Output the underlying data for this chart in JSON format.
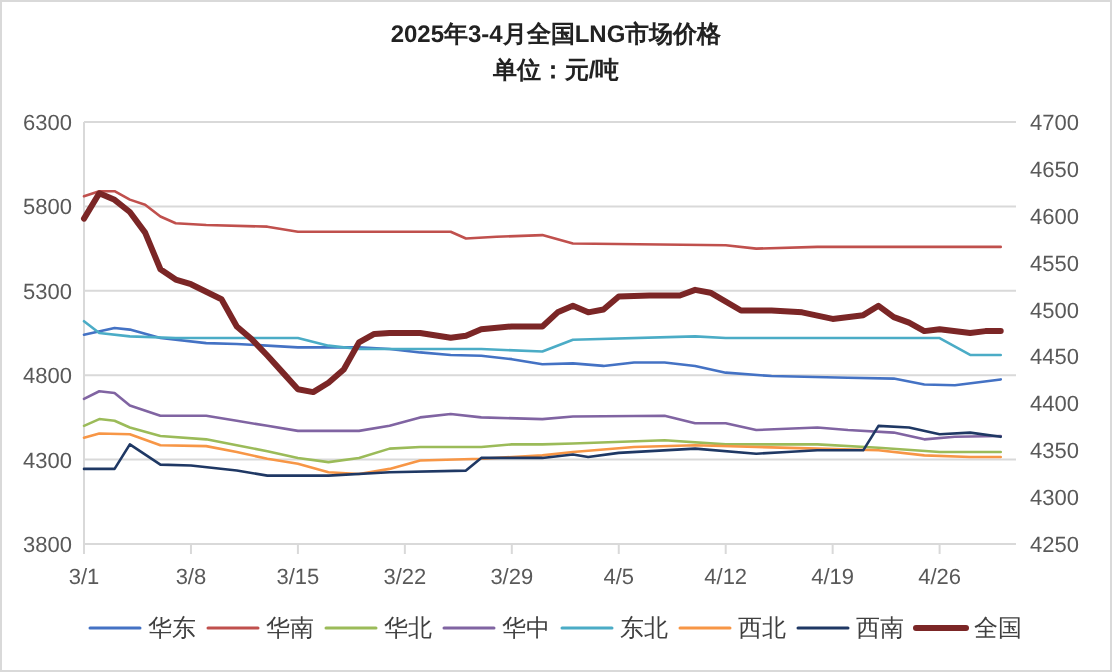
{
  "chart_data": {
    "type": "line",
    "title": "2025年3-4月全国LNG市场价格",
    "subtitle": "单位：元/吨",
    "xlim": [
      "2025-03-01",
      "2025-05-01"
    ],
    "xticks": [
      {
        "value": "2025-03-01",
        "label": "3/1"
      },
      {
        "value": "2025-03-08",
        "label": "3/8"
      },
      {
        "value": "2025-03-15",
        "label": "3/15"
      },
      {
        "value": "2025-03-22",
        "label": "3/22"
      },
      {
        "value": "2025-03-29",
        "label": "3/29"
      },
      {
        "value": "2025-04-05",
        "label": "4/5"
      },
      {
        "value": "2025-04-12",
        "label": "4/12"
      },
      {
        "value": "2025-04-19",
        "label": "4/19"
      },
      {
        "value": "2025-04-26",
        "label": "4/26"
      }
    ],
    "ylim": [
      3800,
      6300
    ],
    "yticks": [
      3800,
      4300,
      4800,
      5300,
      5800,
      6300
    ],
    "y2lim": [
      4250,
      4700
    ],
    "y2ticks": [
      4250,
      4300,
      4350,
      4400,
      4450,
      4500,
      4550,
      4600,
      4650,
      4700
    ],
    "grid": "y",
    "legend": "bottom",
    "marker": "none",
    "line_style": "solid",
    "series": [
      {
        "name": "华东",
        "color": "#4472c4",
        "x": [
          "2025-03-01",
          "2025-03-03",
          "2025-03-04",
          "2025-03-06",
          "2025-03-09",
          "2025-03-11",
          "2025-03-15",
          "2025-03-19",
          "2025-03-21",
          "2025-03-23",
          "2025-03-25",
          "2025-03-27",
          "2025-03-29",
          "2025-03-31",
          "2025-04-02",
          "2025-04-04",
          "2025-04-06",
          "2025-04-08",
          "2025-04-10",
          "2025-04-12",
          "2025-04-15",
          "2025-04-20",
          "2025-04-23",
          "2025-04-25",
          "2025-04-27",
          "2025-04-30"
        ],
        "values": [
          5040,
          5080,
          5070,
          5020,
          4990,
          4985,
          4965,
          4965,
          4955,
          4935,
          4920,
          4915,
          4895,
          4865,
          4870,
          4855,
          4875,
          4875,
          4855,
          4815,
          4795,
          4785,
          4780,
          4745,
          4740,
          4775
        ]
      },
      {
        "name": "华南",
        "color": "#c0504d",
        "x": [
          "2025-03-01",
          "2025-03-02",
          "2025-03-03",
          "2025-03-04",
          "2025-03-05",
          "2025-03-06",
          "2025-03-07",
          "2025-03-09",
          "2025-03-13",
          "2025-03-15",
          "2025-03-25",
          "2025-03-26",
          "2025-03-28",
          "2025-03-31",
          "2025-04-02",
          "2025-04-12",
          "2025-04-14",
          "2025-04-18",
          "2025-04-30"
        ],
        "values": [
          5860,
          5890,
          5890,
          5840,
          5810,
          5740,
          5700,
          5690,
          5680,
          5650,
          5650,
          5610,
          5620,
          5630,
          5580,
          5570,
          5550,
          5560,
          5560
        ]
      },
      {
        "name": "华北",
        "color": "#9bbb59",
        "x": [
          "2025-03-01",
          "2025-03-02",
          "2025-03-03",
          "2025-03-04",
          "2025-03-06",
          "2025-03-09",
          "2025-03-11",
          "2025-03-13",
          "2025-03-15",
          "2025-03-17",
          "2025-03-19",
          "2025-03-21",
          "2025-03-23",
          "2025-03-27",
          "2025-03-29",
          "2025-03-31",
          "2025-04-02",
          "2025-04-08",
          "2025-04-12",
          "2025-04-18",
          "2025-04-22",
          "2025-04-26",
          "2025-04-30"
        ],
        "values": [
          4500,
          4540,
          4530,
          4490,
          4440,
          4420,
          4385,
          4350,
          4310,
          4285,
          4310,
          4365,
          4375,
          4375,
          4390,
          4390,
          4395,
          4415,
          4390,
          4390,
          4370,
          4345,
          4345
        ]
      },
      {
        "name": "华中",
        "color": "#8064a2",
        "x": [
          "2025-03-01",
          "2025-03-02",
          "2025-03-03",
          "2025-03-04",
          "2025-03-06",
          "2025-03-09",
          "2025-03-11",
          "2025-03-13",
          "2025-03-15",
          "2025-03-19",
          "2025-03-21",
          "2025-03-23",
          "2025-03-25",
          "2025-03-27",
          "2025-03-31",
          "2025-04-02",
          "2025-04-08",
          "2025-04-10",
          "2025-04-12",
          "2025-04-14",
          "2025-04-18",
          "2025-04-20",
          "2025-04-23",
          "2025-04-25",
          "2025-04-27",
          "2025-04-30"
        ],
        "values": [
          4660,
          4705,
          4695,
          4620,
          4560,
          4560,
          4530,
          4500,
          4470,
          4470,
          4500,
          4550,
          4570,
          4550,
          4540,
          4555,
          4560,
          4515,
          4515,
          4475,
          4490,
          4475,
          4460,
          4420,
          4435,
          4440
        ]
      },
      {
        "name": "东北",
        "color": "#4bacc6",
        "x": [
          "2025-03-01",
          "2025-03-02",
          "2025-03-04",
          "2025-03-07",
          "2025-03-15",
          "2025-03-17",
          "2025-03-19",
          "2025-03-27",
          "2025-03-31",
          "2025-04-02",
          "2025-04-10",
          "2025-04-12",
          "2025-04-26",
          "2025-04-28",
          "2025-04-30"
        ],
        "values": [
          5120,
          5050,
          5030,
          5020,
          5020,
          4975,
          4955,
          4955,
          4940,
          5010,
          5030,
          5020,
          5020,
          4920,
          4920
        ]
      },
      {
        "name": "西北",
        "color": "#f79646",
        "x": [
          "2025-03-01",
          "2025-03-02",
          "2025-03-04",
          "2025-03-06",
          "2025-03-09",
          "2025-03-11",
          "2025-03-13",
          "2025-03-15",
          "2025-03-17",
          "2025-03-19",
          "2025-03-21",
          "2025-03-23",
          "2025-03-27",
          "2025-03-31",
          "2025-04-02",
          "2025-04-06",
          "2025-04-10",
          "2025-04-14",
          "2025-04-18",
          "2025-04-22",
          "2025-04-25",
          "2025-04-28",
          "2025-04-30"
        ],
        "values": [
          4430,
          4455,
          4450,
          4385,
          4380,
          4345,
          4305,
          4275,
          4225,
          4215,
          4245,
          4295,
          4305,
          4325,
          4345,
          4375,
          4385,
          4375,
          4365,
          4355,
          4325,
          4315,
          4315
        ]
      },
      {
        "name": "西南",
        "color": "#1f3864",
        "x": [
          "2025-03-01",
          "2025-03-03",
          "2025-03-04",
          "2025-03-06",
          "2025-03-08",
          "2025-03-11",
          "2025-03-13",
          "2025-03-17",
          "2025-03-21",
          "2025-03-26",
          "2025-03-27",
          "2025-03-31",
          "2025-04-02",
          "2025-04-03",
          "2025-04-05",
          "2025-04-10",
          "2025-04-14",
          "2025-04-16",
          "2025-04-18",
          "2025-04-21",
          "2025-04-22",
          "2025-04-24",
          "2025-04-26",
          "2025-04-28",
          "2025-04-30"
        ],
        "values": [
          4245,
          4245,
          4390,
          4270,
          4265,
          4235,
          4205,
          4205,
          4225,
          4235,
          4310,
          4310,
          4330,
          4315,
          4340,
          4365,
          4335,
          4345,
          4355,
          4355,
          4500,
          4490,
          4450,
          4460,
          4435
        ]
      },
      {
        "name": "全国",
        "color": "#7b2626",
        "axis": "y2",
        "x": [
          "2025-03-01",
          "2025-03-02",
          "2025-03-03",
          "2025-03-04",
          "2025-03-05",
          "2025-03-06",
          "2025-03-07",
          "2025-03-08",
          "2025-03-09",
          "2025-03-10",
          "2025-03-11",
          "2025-03-12",
          "2025-03-13",
          "2025-03-14",
          "2025-03-15",
          "2025-03-16",
          "2025-03-17",
          "2025-03-18",
          "2025-03-19",
          "2025-03-20",
          "2025-03-21",
          "2025-03-23",
          "2025-03-25",
          "2025-03-26",
          "2025-03-27",
          "2025-03-29",
          "2025-03-31",
          "2025-04-01",
          "2025-04-02",
          "2025-04-03",
          "2025-04-04",
          "2025-04-05",
          "2025-04-07",
          "2025-04-09",
          "2025-04-10",
          "2025-04-11",
          "2025-04-13",
          "2025-04-15",
          "2025-04-17",
          "2025-04-19",
          "2025-04-21",
          "2025-04-22",
          "2025-04-23",
          "2025-04-24",
          "2025-04-25",
          "2025-04-26",
          "2025-04-28",
          "2025-04-29",
          "2025-04-30"
        ],
        "values": [
          4597,
          4624,
          4617,
          4604,
          4582,
          4543,
          4532,
          4527,
          4519,
          4511,
          4482,
          4468,
          4451,
          4433,
          4415,
          4412,
          4422,
          4436,
          4465,
          4474,
          4475,
          4475,
          4470,
          4472,
          4479,
          4482,
          4482,
          4497,
          4504,
          4497,
          4500,
          4514,
          4515,
          4515,
          4521,
          4518,
          4499,
          4499,
          4497,
          4490,
          4494,
          4504,
          4492,
          4486,
          4477,
          4479,
          4475,
          4477,
          4477
        ]
      }
    ]
  }
}
